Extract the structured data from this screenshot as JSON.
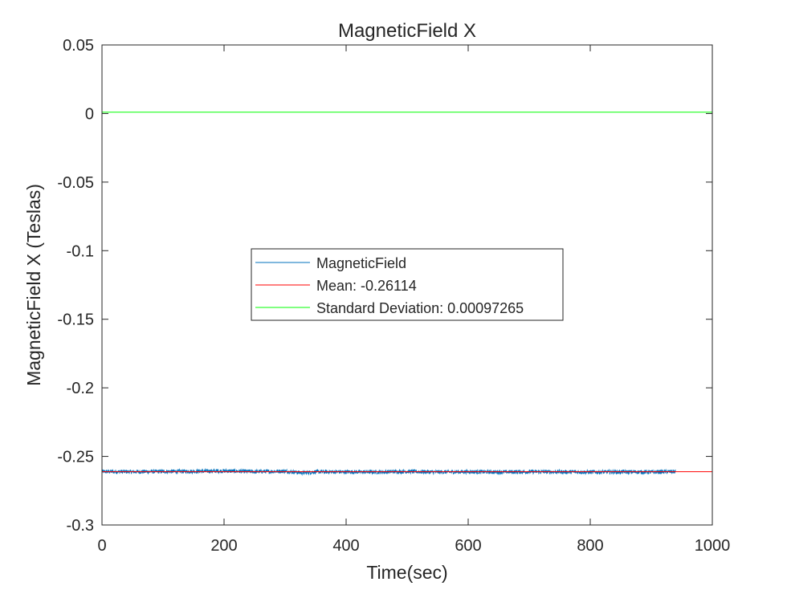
{
  "chart_data": {
    "type": "line",
    "title": "MagneticField X",
    "xlabel": "Time(sec)",
    "ylabel": "MagneticField X (Teslas)",
    "xlim": [
      0,
      1000
    ],
    "ylim": [
      -0.3,
      0.05
    ],
    "xticks": [
      0,
      200,
      400,
      600,
      800,
      1000
    ],
    "xtick_labels": [
      "0",
      "200",
      "400",
      "600",
      "800",
      "1000"
    ],
    "yticks": [
      0.05,
      0,
      -0.05,
      -0.1,
      -0.15,
      -0.2,
      -0.25,
      -0.3
    ],
    "ytick_labels": [
      "0.05",
      "0",
      "-0.05",
      "-0.1",
      "-0.15",
      "-0.2",
      "-0.25",
      "-0.3"
    ],
    "grid": false,
    "legend_position": "center",
    "series": [
      {
        "name": "MagneticField",
        "color": "#0072BD",
        "x_range": [
          0,
          940
        ],
        "mean": -0.26114,
        "approx_band": [
          -0.2635,
          -0.2595
        ],
        "sample_points": [
          [
            0,
            -0.2611
          ],
          [
            50,
            -0.2612
          ],
          [
            100,
            -0.261
          ],
          [
            150,
            -0.2609
          ],
          [
            200,
            -0.2606
          ],
          [
            250,
            -0.2611
          ],
          [
            300,
            -0.2608
          ],
          [
            330,
            -0.262
          ],
          [
            350,
            -0.2612
          ],
          [
            400,
            -0.2613
          ],
          [
            450,
            -0.2614
          ],
          [
            500,
            -0.261
          ],
          [
            550,
            -0.2614
          ],
          [
            600,
            -0.2612
          ],
          [
            650,
            -0.2614
          ],
          [
            700,
            -0.2612
          ],
          [
            750,
            -0.2613
          ],
          [
            800,
            -0.2614
          ],
          [
            850,
            -0.2613
          ],
          [
            900,
            -0.2614
          ],
          [
            940,
            -0.2611
          ]
        ],
        "noise_amplitude": 0.0015
      },
      {
        "name": "Mean: -0.26114",
        "color": "#FF0000",
        "x": [
          0,
          1000
        ],
        "y": [
          -0.26114,
          -0.26114
        ]
      },
      {
        "name": "Standard Deviation: 0.00097265",
        "color": "#00FF00",
        "x": [
          0,
          1000
        ],
        "y": [
          0.00097265,
          0.00097265
        ]
      }
    ]
  }
}
